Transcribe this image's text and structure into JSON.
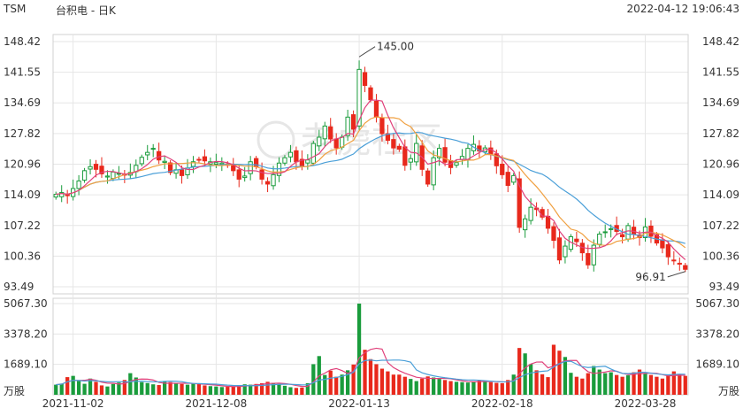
{
  "header": {
    "symbol": "TSM",
    "title": "台积电 - 日K",
    "datetime": "2022-04-12 19:06:43"
  },
  "watermark": "老虎社区",
  "colors": {
    "up": "#1a9c3c",
    "down": "#e8291c",
    "ma5": "#e0407a",
    "ma10": "#f0a040",
    "ma20": "#4a9fd8",
    "vol_ma": "#e0407a",
    "vol_ma2": "#4a9fd8"
  },
  "chart_data": {
    "type": "candlestick",
    "price_axis": {
      "ticks": [
        "148.42",
        "141.55",
        "134.69",
        "127.82",
        "120.96",
        "114.09",
        "107.22",
        "100.36",
        "93.49"
      ],
      "range": [
        93.49,
        148.42
      ]
    },
    "volume_axis": {
      "ticks": [
        "5067.30",
        "3378.20",
        "1689.10"
      ],
      "range": [
        0,
        5067.3
      ],
      "unit": "万股"
    },
    "x_ticks": [
      "2021-11-02",
      "2021-12-08",
      "2022-01-13",
      "2022-02-18",
      "2022-03-28"
    ],
    "annotations": [
      {
        "text": "145.00",
        "type": "high"
      },
      {
        "text": "96.91",
        "type": "low"
      }
    ],
    "closes": [
      114.2,
      114.6,
      113.9,
      115.5,
      117.2,
      119.5,
      120.4,
      119.8,
      118.8,
      118.3,
      119.2,
      118.9,
      118.5,
      119.1,
      120.7,
      122.5,
      123.6,
      124.5,
      121.9,
      121.6,
      119.1,
      119.7,
      118.4,
      120.1,
      121.5,
      121.9,
      121.7,
      121.5,
      121.3,
      121.2,
      120.7,
      119.5,
      117.6,
      118.3,
      121.5,
      120.4,
      117.6,
      116.5,
      118.6,
      121.2,
      122.4,
      123.6,
      121.5,
      120.5,
      121.9,
      125.6,
      127.0,
      129.5,
      126.6,
      124.6,
      127.0,
      131.5,
      128.8,
      142.2,
      138.6,
      135.4,
      131.5,
      127.8,
      126.3,
      124.6,
      124.3,
      120.7,
      122.2,
      125.6,
      119.8,
      116.5,
      122.4,
      124.5,
      121.4,
      120.2,
      121.3,
      122.7,
      124.5,
      125.4,
      123.9,
      124.6,
      123.1,
      120.6,
      118.6,
      116.2,
      118.4,
      106.8,
      108.7,
      111.3,
      110.8,
      109.1,
      106.6,
      103.9,
      99.5,
      102.6,
      104.7,
      103.6,
      101.1,
      98.4,
      102.8,
      105.3,
      105.8,
      106.5,
      105.9,
      104.7,
      107.2,
      105.3,
      104.5,
      106.9,
      104.8,
      103.3,
      102.2,
      100.2,
      99.3,
      98.6,
      97.4
    ],
    "volumes": [
      560,
      620,
      980,
      1050,
      760,
      610,
      900,
      720,
      520,
      460,
      600,
      680,
      820,
      1200,
      960,
      700,
      650,
      580,
      540,
      720,
      700,
      640,
      600,
      560,
      620,
      600,
      520,
      480,
      460,
      430,
      440,
      460,
      520,
      580,
      560,
      600,
      640,
      720,
      660,
      600,
      500,
      420,
      380,
      400,
      640,
      1700,
      2150,
      1100,
      1340,
      1000,
      1120,
      1360,
      1680,
      5067,
      2500,
      1980,
      1700,
      1450,
      1300,
      1120,
      1120,
      1000,
      880,
      760,
      900,
      1020,
      960,
      880,
      820,
      760,
      720,
      700,
      680,
      740,
      800,
      760,
      700,
      660,
      640,
      820,
      1120,
      2600,
      2300,
      1700,
      1360,
      1140,
      980,
      2780,
      2450,
      2100,
      1220,
      1000,
      900,
      1200,
      1600,
      1400,
      1200,
      1250,
      1100,
      1000,
      1080,
      1250,
      1400,
      1200,
      1100,
      1000,
      900,
      1050,
      1300,
      1150,
      1050
    ]
  }
}
